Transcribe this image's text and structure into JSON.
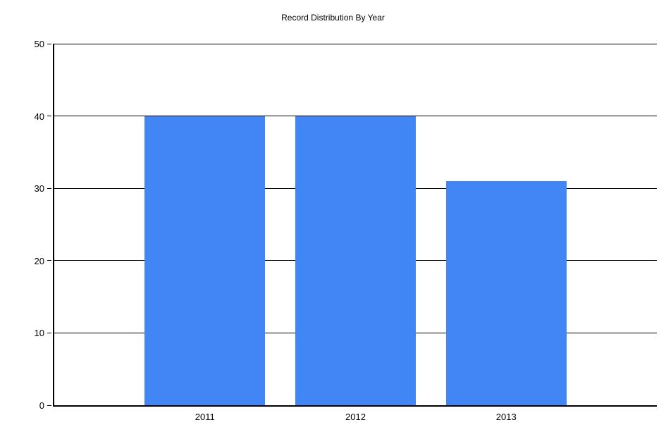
{
  "chart_data": {
    "type": "bar",
    "title": "Record Distribution By Year",
    "categories": [
      "2011",
      "2012",
      "2013"
    ],
    "values": [
      40,
      40,
      31
    ],
    "xlabel": "",
    "ylabel": "",
    "ylim": [
      0,
      50
    ],
    "yticks": [
      0,
      10,
      20,
      30,
      40,
      50
    ],
    "grid": "horizontal",
    "legend": "none",
    "bar_color": "#4285F4",
    "axis_color": "#000000",
    "background_color": "#FFFFFF",
    "bar_width_fraction": 0.8
  }
}
